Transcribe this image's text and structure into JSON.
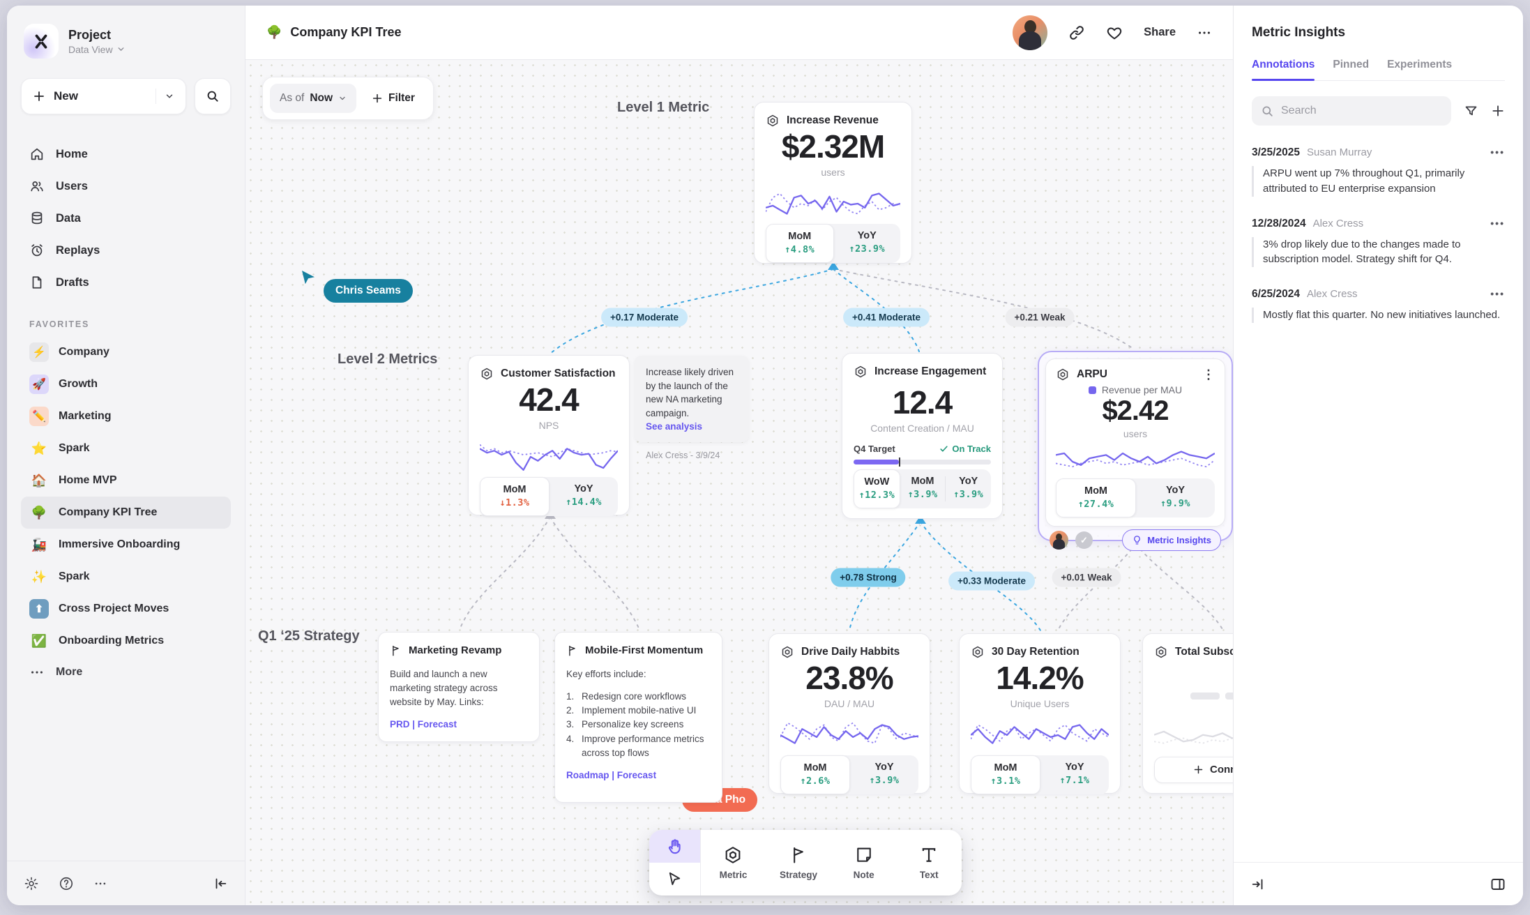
{
  "project": {
    "name": "Project",
    "view": "Data View"
  },
  "sidebar": {
    "new_label": "New",
    "nav": [
      {
        "label": "Home"
      },
      {
        "label": "Users"
      },
      {
        "label": "Data"
      },
      {
        "label": "Replays"
      },
      {
        "label": "Drafts"
      }
    ],
    "favorites_title": "FAVORITES",
    "favorites": [
      {
        "label": "Company",
        "emoji": "⚡"
      },
      {
        "label": "Growth",
        "emoji": "🚀"
      },
      {
        "label": "Marketing",
        "emoji": "✏️"
      },
      {
        "label": "Spark",
        "emoji": "⭐"
      },
      {
        "label": "Home MVP",
        "emoji": "🏠"
      },
      {
        "label": "Company KPI Tree",
        "emoji": "🌳"
      },
      {
        "label": "Immersive Onboarding",
        "emoji": "🚂"
      },
      {
        "label": "Spark",
        "emoji": "✨"
      },
      {
        "label": "Cross Project Moves",
        "emoji": "⬆"
      },
      {
        "label": "Onboarding Metrics",
        "emoji": "✅"
      }
    ],
    "more_label": "More"
  },
  "header": {
    "emoji": "🌳",
    "title": "Company KPI Tree",
    "share_label": "Share"
  },
  "controls": {
    "as_of_label": "As of",
    "as_of_value": "Now",
    "filter_label": "Filter"
  },
  "canvas": {
    "level1_label": "Level 1 Metric",
    "level2_label": "Level 2 Metrics",
    "strategy_label": "Q1 ‘25 Strategy",
    "cursors": [
      {
        "name": "Chris Seams"
      },
      {
        "name": "Maria Pho"
      }
    ],
    "edge_badges": [
      {
        "label": "+0.17 Moderate"
      },
      {
        "label": "+0.41 Moderate"
      },
      {
        "label": "+0.21 Weak"
      },
      {
        "label": "+0.78 Strong"
      },
      {
        "label": "+0.33 Moderate"
      },
      {
        "label": "+0.01 Weak"
      }
    ]
  },
  "cards": {
    "revenue": {
      "title": "Increase Revenue",
      "value": "$2.32M",
      "unit": "users",
      "deltas": [
        {
          "label": "MoM",
          "value": "↑4.8%"
        },
        {
          "label": "YoY",
          "value": "↑23.9%"
        }
      ]
    },
    "satisfaction": {
      "title": "Customer Satisfaction",
      "value": "42.4",
      "unit": "NPS",
      "deltas": [
        {
          "label": "MoM",
          "value": "↓1.3%"
        },
        {
          "label": "YoY",
          "value": "↑14.4%"
        }
      ]
    },
    "note": {
      "body": "Increase likely driven by the launch of the new NA marketing campaign.",
      "link": "See analysis",
      "author": "Alex Cress - 3/9/24"
    },
    "engagement": {
      "title": "Increase Engagement",
      "value": "12.4",
      "unit": "Content Creation / MAU",
      "target_label": "Q4 Target",
      "target_status": "On Track",
      "progress_pct": 33,
      "deltas": [
        {
          "label": "WoW",
          "value": "↑12.3%"
        },
        {
          "label": "MoM",
          "value": "↑3.9%"
        },
        {
          "label": "YoY",
          "value": "↑3.9%"
        }
      ]
    },
    "arpu": {
      "title": "ARPU",
      "legend": "Revenue per MAU",
      "value": "$2.42",
      "unit": "users",
      "deltas": [
        {
          "label": "MoM",
          "value": "↑27.4%"
        },
        {
          "label": "YoY",
          "value": "↑9.9%"
        }
      ],
      "check": "✓",
      "insights_label": "Metric Insights"
    },
    "marketing": {
      "title": "Marketing Revamp",
      "body": "Build and launch a new marketing strategy across website by May. Links:",
      "links": "PRD | Forecast"
    },
    "mobile": {
      "title": "Mobile-First Momentum",
      "intro": "Key efforts include:",
      "items": [
        "Redesign core workflows",
        "Implement mobile-native UI",
        "Personalize key screens",
        "Improve performance metrics across top flows"
      ],
      "links": "Roadmap | Forecast"
    },
    "habits": {
      "title": "Drive Daily Habbits",
      "value": "23.8%",
      "unit": "DAU / MAU",
      "deltas": [
        {
          "label": "MoM",
          "value": "↑2.6%"
        },
        {
          "label": "YoY",
          "value": "↑3.9%"
        }
      ]
    },
    "retention": {
      "title": "30 Day Retention",
      "value": "14.2%",
      "unit": "Unique Users",
      "deltas": [
        {
          "label": "MoM",
          "value": "↑3.1%"
        },
        {
          "label": "YoY",
          "value": "↑7.1%"
        }
      ]
    },
    "subscriptions": {
      "title": "Total Subscript",
      "connect_label": "Connect"
    }
  },
  "sparks": {
    "revenue": {
      "solid": [
        24,
        22,
        26,
        30,
        14,
        12,
        20,
        17,
        25,
        13,
        28,
        18,
        21,
        20,
        24,
        12,
        10,
        16,
        22,
        20
      ],
      "dotted": [
        28,
        14,
        10,
        18,
        24,
        20,
        22,
        16,
        26,
        18,
        14,
        22,
        28,
        30,
        22,
        18,
        26,
        24,
        20,
        22
      ]
    },
    "satisfaction": {
      "solid": [
        12,
        16,
        14,
        18,
        15,
        26,
        33,
        20,
        24,
        18,
        14,
        22,
        12,
        16,
        18,
        17,
        28,
        31,
        22,
        14
      ],
      "dotted": [
        8,
        14,
        12,
        16,
        14,
        16,
        18,
        17,
        16,
        18,
        20,
        16,
        12,
        14,
        16,
        18,
        17,
        16,
        14,
        15
      ]
    },
    "arpu": {
      "solid": [
        12,
        10,
        20,
        24,
        16,
        14,
        12,
        18,
        10,
        16,
        20,
        14,
        22,
        18,
        12,
        8,
        12,
        14,
        16,
        10
      ],
      "dotted": [
        22,
        24,
        26,
        22,
        20,
        18,
        22,
        20,
        24,
        22,
        20,
        24,
        22,
        20,
        18,
        16,
        20,
        24,
        26,
        18
      ]
    },
    "habits": {
      "solid": [
        20,
        24,
        28,
        14,
        18,
        22,
        12,
        20,
        24,
        16,
        22,
        18,
        24,
        14,
        10,
        12,
        20,
        24,
        22,
        21
      ],
      "dotted": [
        22,
        8,
        12,
        18,
        24,
        14,
        10,
        22,
        26,
        12,
        8,
        18,
        26,
        28,
        10,
        14,
        24,
        18,
        20,
        22
      ]
    },
    "retention": {
      "solid": [
        20,
        14,
        22,
        28,
        16,
        20,
        12,
        18,
        24,
        14,
        18,
        22,
        20,
        24,
        12,
        10,
        18,
        24,
        14,
        20
      ],
      "dotted": [
        24,
        10,
        14,
        20,
        26,
        16,
        12,
        24,
        18,
        14,
        20,
        26,
        14,
        10,
        18,
        22,
        26,
        14,
        18,
        22
      ]
    },
    "subscriptions": {
      "solid": [
        14,
        10,
        16,
        22,
        20,
        14,
        16,
        12,
        18,
        16,
        14,
        20,
        24,
        18,
        16
      ],
      "dotted": [
        22,
        24,
        20,
        18,
        22,
        24,
        20,
        22,
        18,
        20,
        24,
        22,
        20,
        24,
        22
      ]
    }
  },
  "toolbar": {
    "tools": [
      {
        "label": "Metric"
      },
      {
        "label": "Strategy"
      },
      {
        "label": "Note"
      },
      {
        "label": "Text"
      }
    ]
  },
  "insights_panel": {
    "title": "Metric Insights",
    "tabs": [
      "Annotations",
      "Pinned",
      "Experiments"
    ],
    "search_placeholder": "Search",
    "annotations": [
      {
        "date": "3/25/2025",
        "author": "Susan Murray",
        "text": "ARPU went up 7% throughout Q1, primarily attributed to EU enterprise expansion"
      },
      {
        "date": "12/28/2024",
        "author": "Alex Cress",
        "text": "3% drop likely due to the changes made to subscription model. Strategy shift for Q4."
      },
      {
        "date": "6/25/2024",
        "author": "Alex Cress",
        "text": "Mostly flat this quarter. No new initiatives launched."
      }
    ]
  },
  "colors": {
    "accent_purple": "#5646ef",
    "spark_purple": "#7566ee",
    "positive_green": "#2a9d80",
    "negative_red": "#e2603f",
    "edge_blue": "#3ba6e0",
    "edge_gray": "#b8b8c2",
    "cursor_teal": "#17809f",
    "cursor_coral": "#f26b52"
  }
}
